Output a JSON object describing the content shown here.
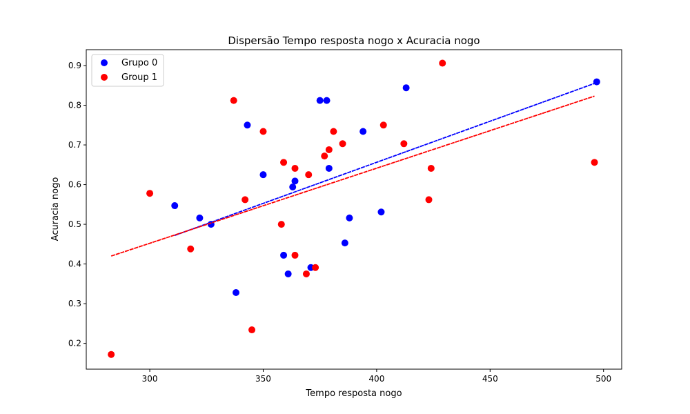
{
  "chart_data": {
    "type": "scatter",
    "title": "Dispersão Tempo resposta nogo x Acuracia nogo",
    "xlabel": "Tempo resposta nogo",
    "ylabel": "Acuracia nogo",
    "xlim": [
      272,
      508
    ],
    "ylim": [
      0.135,
      0.94
    ],
    "xticks": [
      300,
      350,
      400,
      450,
      500
    ],
    "yticks": [
      0.2,
      0.3,
      0.4,
      0.5,
      0.6,
      0.7,
      0.8,
      0.9
    ],
    "grid": false,
    "legend_position": "top-left",
    "series": [
      {
        "name": "Grupo 0",
        "color": "#0000ff",
        "points": [
          [
            311,
            0.547
          ],
          [
            322,
            0.516
          ],
          [
            327,
            0.5
          ],
          [
            338,
            0.328
          ],
          [
            343,
            0.75
          ],
          [
            350,
            0.625
          ],
          [
            359,
            0.422
          ],
          [
            361,
            0.375
          ],
          [
            363,
            0.594
          ],
          [
            364,
            0.609
          ],
          [
            371,
            0.391
          ],
          [
            375,
            0.812
          ],
          [
            378,
            0.812
          ],
          [
            379,
            0.641
          ],
          [
            386,
            0.453
          ],
          [
            388,
            0.516
          ],
          [
            394,
            0.734
          ],
          [
            402,
            0.531
          ],
          [
            413,
            0.844
          ],
          [
            497,
            0.859
          ]
        ],
        "trendline": {
          "x": [
            311,
            497
          ],
          "y": [
            0.472,
            0.857
          ],
          "style": "dashed"
        }
      },
      {
        "name": "Group 1",
        "color": "#ff0000",
        "points": [
          [
            283,
            0.172
          ],
          [
            300,
            0.578
          ],
          [
            318,
            0.438
          ],
          [
            337,
            0.812
          ],
          [
            342,
            0.562
          ],
          [
            345,
            0.234
          ],
          [
            350,
            0.734
          ],
          [
            358,
            0.5
          ],
          [
            359,
            0.656
          ],
          [
            364,
            0.422
          ],
          [
            364,
            0.641
          ],
          [
            369,
            0.375
          ],
          [
            370,
            0.625
          ],
          [
            373,
            0.391
          ],
          [
            377,
            0.672
          ],
          [
            379,
            0.688
          ],
          [
            381,
            0.734
          ],
          [
            385,
            0.703
          ],
          [
            403,
            0.75
          ],
          [
            412,
            0.703
          ],
          [
            423,
            0.562
          ],
          [
            424,
            0.641
          ],
          [
            429,
            0.906
          ],
          [
            496,
            0.656
          ]
        ],
        "trendline": {
          "x": [
            283,
            496
          ],
          "y": [
            0.42,
            0.823
          ],
          "style": "dashed"
        }
      }
    ]
  }
}
